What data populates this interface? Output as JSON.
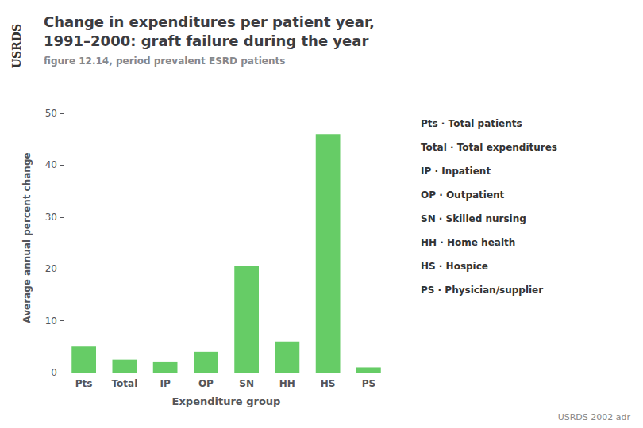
{
  "chart_data": {
    "type": "bar",
    "title": "Change in expenditures per patient year,\n1991–2000: graft failure during the year",
    "subtitle": "figure 12.14, period prevalent ESRD patients",
    "categories": [
      "Pts",
      "Total",
      "IP",
      "OP",
      "SN",
      "HH",
      "HS",
      "PS"
    ],
    "values": [
      5.0,
      2.5,
      2.0,
      4.0,
      20.5,
      6.0,
      46.0,
      1.0
    ],
    "color": "#66cc66",
    "xlabel": "Expenditure group",
    "ylabel": "Average annual percent change",
    "ylim": [
      0,
      52
    ],
    "yticks": [
      0,
      10,
      20,
      30,
      40,
      50
    ],
    "grid": false,
    "annotations": [
      "USRDS",
      "Pts · Total patients",
      "Total · Total expenditures",
      "IP · Inpatient",
      "OP · Outpatient",
      "SN · Skilled nursing",
      "HH · Home health",
      "HS · Hospice",
      "PS · Physician/supplier",
      "USRDS 2002 adr"
    ]
  }
}
